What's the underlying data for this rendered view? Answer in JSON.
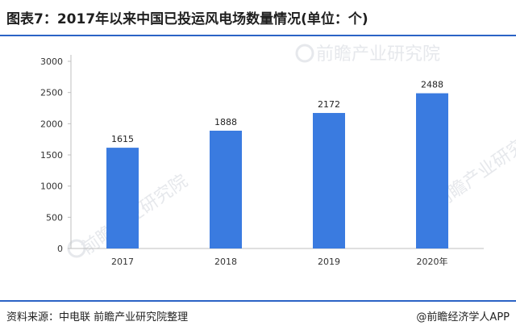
{
  "page": {
    "title": "图表7：2017年以来中国已投运风电场数量情况(单位：个)",
    "source": "资料来源：中电联 前瞻产业研究院整理",
    "brand": "@前瞻经济学人APP",
    "watermark": "前瞻产业研究院",
    "accent_color": "#2b63c6",
    "bar_color": "#3a7be0"
  },
  "chart_data": {
    "type": "bar",
    "categories": [
      "2017",
      "2018",
      "2019",
      "2020年"
    ],
    "values": [
      1615,
      1888,
      2172,
      2488
    ],
    "title": "图表7：2017年以来中国已投运风电场数量情况(单位：个)",
    "xlabel": "",
    "ylabel": "",
    "ylim": [
      0,
      3000
    ],
    "yticks": [
      0,
      500,
      1000,
      1500,
      2000,
      2500,
      3000
    ],
    "grid": false,
    "legend": "none",
    "data_labels": true
  }
}
